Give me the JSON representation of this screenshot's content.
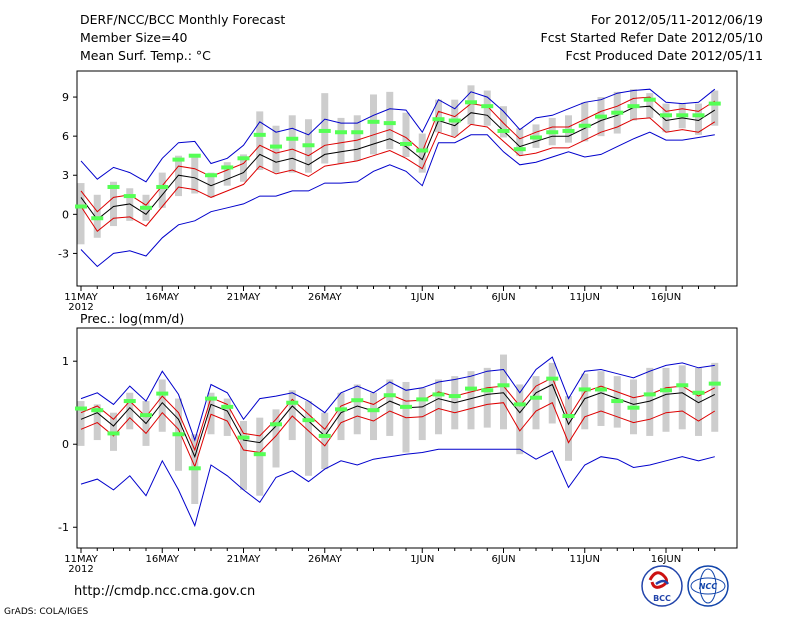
{
  "header": {
    "title": "DERF/NCC/BCC Monthly Forecast",
    "member_size": "Member Size=40",
    "variable": "Mean Surf. Temp.: °C",
    "period": "For 2012/05/11-2012/06/19",
    "start_date": "Fcst Started Refer Date 2012/05/10",
    "produced_date": "Fcst Produced Date 2012/05/11"
  },
  "footer": {
    "url": "http://cmdp.ncc.cma.gov.cn",
    "credit": "GrADS: COLA/IGES",
    "logo_left": "BCC",
    "logo_right": "NCC"
  },
  "colors": {
    "bar": "#cdcdcd",
    "obs": "#55ff55",
    "mean": "#000000",
    "spread": "#dd0000",
    "envelope": "#0000cc"
  },
  "chart_data": [
    {
      "type": "line",
      "name": "temperature",
      "ylabel": "Mean Surf. Temp.: °C",
      "ylim": [
        -5.5,
        11
      ],
      "yticks": [
        -3,
        0,
        3,
        6,
        9
      ],
      "x_tick_labels": [
        "11MAY",
        "16MAY",
        "21MAY",
        "26MAY",
        "1JUN",
        "6JUN",
        "11JUN",
        "16JUN"
      ],
      "x_tick_days": [
        0,
        5,
        10,
        15,
        21,
        26,
        31,
        36
      ],
      "year_label": "2012",
      "days": 40,
      "mean": [
        1.3,
        -0.4,
        0.6,
        0.8,
        0.0,
        1.5,
        3.0,
        2.8,
        2.2,
        2.7,
        3.2,
        4.6,
        4.0,
        4.3,
        3.8,
        4.6,
        4.8,
        5.0,
        5.4,
        5.8,
        5.2,
        4.2,
        7.2,
        6.8,
        7.8,
        7.6,
        6.4,
        5.2,
        5.6,
        6.0,
        6.0,
        6.6,
        7.2,
        7.6,
        8.2,
        8.3,
        7.2,
        7.4,
        7.2,
        8.0
      ],
      "spread_upper": [
        1.8,
        0.2,
        1.3,
        1.5,
        0.7,
        2.2,
        3.7,
        3.5,
        2.9,
        3.4,
        3.9,
        5.3,
        4.7,
        5.0,
        4.5,
        5.3,
        5.5,
        5.7,
        6.1,
        6.5,
        5.9,
        4.8,
        7.9,
        7.5,
        8.5,
        8.3,
        7.0,
        5.8,
        6.3,
        6.7,
        6.7,
        7.3,
        7.9,
        8.3,
        8.9,
        9.0,
        7.9,
        8.1,
        7.9,
        8.7
      ],
      "spread_lower": [
        0.6,
        -1.3,
        -0.3,
        -0.2,
        -0.9,
        0.6,
        2.1,
        1.9,
        1.3,
        1.8,
        2.3,
        3.7,
        3.1,
        3.4,
        2.9,
        3.7,
        3.9,
        4.1,
        4.5,
        4.9,
        4.3,
        3.5,
        6.3,
        5.9,
        6.9,
        6.7,
        5.6,
        4.5,
        4.7,
        5.1,
        5.1,
        5.7,
        6.3,
        6.7,
        7.3,
        7.4,
        6.3,
        6.5,
        6.3,
        7.1
      ],
      "env_max": [
        4.1,
        2.7,
        3.6,
        3.2,
        2.5,
        4.3,
        5.5,
        5.6,
        3.9,
        4.3,
        5.3,
        7.1,
        6.3,
        6.6,
        6.1,
        7.3,
        7.0,
        7.0,
        7.6,
        8.1,
        8.0,
        6.3,
        8.8,
        8.1,
        9.4,
        9.0,
        7.9,
        6.5,
        7.4,
        7.6,
        8.1,
        8.6,
        8.8,
        9.3,
        9.5,
        9.6,
        8.6,
        8.5,
        8.6,
        9.6
      ],
      "env_min": [
        -2.7,
        -4.0,
        -3.0,
        -2.8,
        -3.2,
        -1.8,
        -0.8,
        -0.5,
        0.2,
        0.5,
        0.8,
        1.4,
        1.4,
        1.8,
        1.8,
        2.4,
        2.4,
        2.5,
        3.3,
        3.8,
        3.3,
        2.2,
        5.5,
        5.5,
        6.1,
        6.1,
        4.8,
        3.8,
        4.0,
        4.4,
        4.8,
        4.4,
        4.6,
        5.2,
        5.8,
        6.3,
        5.7,
        5.7,
        5.9,
        6.1
      ],
      "bar_top": [
        2.4,
        1.5,
        2.5,
        2.0,
        1.5,
        3.2,
        4.5,
        4.6,
        3.2,
        4.0,
        4.6,
        7.9,
        6.8,
        7.6,
        7.3,
        9.3,
        7.4,
        7.6,
        9.2,
        9.4,
        7.8,
        6.2,
        8.8,
        8.8,
        9.9,
        9.5,
        8.3,
        6.6,
        6.9,
        7.4,
        7.6,
        8.6,
        9.0,
        9.4,
        9.6,
        9.3,
        8.5,
        8.5,
        8.5,
        9.5
      ],
      "bar_bottom": [
        -2.3,
        -1.8,
        -0.9,
        -0.5,
        -0.5,
        0.5,
        1.4,
        1.6,
        1.3,
        2.2,
        2.5,
        3.4,
        3.2,
        3.2,
        3.2,
        3.9,
        3.9,
        4.1,
        4.6,
        5.0,
        4.4,
        3.2,
        6.3,
        6.0,
        6.9,
        6.8,
        5.9,
        4.5,
        5.1,
        5.3,
        5.5,
        5.6,
        6.0,
        6.2,
        7.2,
        7.4,
        6.3,
        6.6,
        6.1,
        6.8
      ],
      "obs": [
        0.6,
        -0.3,
        2.1,
        1.4,
        0.5,
        2.1,
        4.2,
        4.5,
        3.0,
        3.6,
        4.3,
        6.1,
        5.2,
        5.8,
        5.3,
        6.4,
        6.3,
        6.3,
        7.1,
        7.0,
        5.4,
        4.9,
        7.3,
        7.2,
        8.6,
        8.3,
        6.4,
        5.0,
        5.9,
        6.3,
        6.4,
        6.8,
        7.5,
        7.8,
        8.3,
        8.8,
        7.6,
        7.6,
        7.6,
        8.5
      ]
    },
    {
      "type": "line",
      "name": "precipitation",
      "ylabel": "Prec.: log(mm/d)",
      "ylim": [
        -1.25,
        1.4
      ],
      "yticks": [
        -1,
        0,
        1
      ],
      "x_tick_labels": [
        "11MAY",
        "16MAY",
        "21MAY",
        "26MAY",
        "1JUN",
        "6JUN",
        "11JUN",
        "16JUN"
      ],
      "x_tick_days": [
        0,
        5,
        10,
        15,
        21,
        26,
        31,
        36
      ],
      "year_label": "2012",
      "days": 40,
      "mean": [
        0.3,
        0.38,
        0.22,
        0.44,
        0.25,
        0.5,
        0.3,
        -0.15,
        0.48,
        0.4,
        0.05,
        0.02,
        0.22,
        0.46,
        0.28,
        0.1,
        0.38,
        0.46,
        0.4,
        0.52,
        0.44,
        0.45,
        0.55,
        0.5,
        0.55,
        0.6,
        0.62,
        0.38,
        0.62,
        0.72,
        0.24,
        0.55,
        0.62,
        0.55,
        0.48,
        0.52,
        0.6,
        0.62,
        0.5,
        0.6
      ],
      "spread_upper": [
        0.38,
        0.46,
        0.3,
        0.52,
        0.33,
        0.58,
        0.38,
        -0.07,
        0.56,
        0.48,
        0.13,
        0.1,
        0.3,
        0.54,
        0.36,
        0.18,
        0.46,
        0.54,
        0.48,
        0.6,
        0.52,
        0.53,
        0.63,
        0.58,
        0.63,
        0.68,
        0.7,
        0.46,
        0.7,
        0.8,
        0.32,
        0.63,
        0.7,
        0.63,
        0.56,
        0.6,
        0.68,
        0.7,
        0.58,
        0.68
      ],
      "spread_lower": [
        0.18,
        0.26,
        0.1,
        0.32,
        0.13,
        0.38,
        0.18,
        -0.27,
        0.36,
        0.28,
        -0.07,
        -0.1,
        0.1,
        0.34,
        0.16,
        -0.02,
        0.26,
        0.34,
        0.28,
        0.4,
        0.32,
        0.33,
        0.43,
        0.38,
        0.43,
        0.48,
        0.5,
        0.16,
        0.4,
        0.5,
        0.02,
        0.33,
        0.4,
        0.33,
        0.26,
        0.3,
        0.38,
        0.4,
        0.28,
        0.4
      ],
      "env_max": [
        0.55,
        0.62,
        0.48,
        0.7,
        0.52,
        0.88,
        0.6,
        0.05,
        0.72,
        0.62,
        0.3,
        0.55,
        0.58,
        0.62,
        0.52,
        0.38,
        0.62,
        0.7,
        0.62,
        0.75,
        0.65,
        0.68,
        0.75,
        0.78,
        0.82,
        0.88,
        0.9,
        0.62,
        0.9,
        1.05,
        0.55,
        0.88,
        0.9,
        0.85,
        0.8,
        0.88,
        0.95,
        0.98,
        0.92,
        0.95
      ],
      "env_min": [
        -0.48,
        -0.42,
        -0.55,
        -0.38,
        -0.62,
        -0.2,
        -0.55,
        -0.98,
        -0.25,
        -0.38,
        -0.55,
        -0.7,
        -0.4,
        -0.32,
        -0.45,
        -0.3,
        -0.2,
        -0.25,
        -0.18,
        -0.15,
        -0.12,
        -0.1,
        -0.06,
        -0.06,
        -0.06,
        -0.06,
        -0.06,
        -0.06,
        -0.18,
        -0.08,
        -0.52,
        -0.25,
        -0.15,
        -0.18,
        -0.28,
        -0.25,
        -0.2,
        -0.15,
        -0.2,
        -0.15
      ],
      "bar_top": [
        0.52,
        0.48,
        0.38,
        0.62,
        0.52,
        0.78,
        0.55,
        0.12,
        0.62,
        0.55,
        0.28,
        0.32,
        0.42,
        0.65,
        0.52,
        0.38,
        0.62,
        0.72,
        0.62,
        0.78,
        0.75,
        0.68,
        0.78,
        0.82,
        0.88,
        0.92,
        1.08,
        0.72,
        0.82,
        0.98,
        0.58,
        0.85,
        0.88,
        0.82,
        0.78,
        0.92,
        0.92,
        0.95,
        0.92,
        0.98
      ],
      "bar_bottom": [
        -0.02,
        0.05,
        -0.08,
        0.18,
        -0.02,
        0.15,
        -0.32,
        -0.72,
        0.12,
        0.1,
        -0.55,
        -0.62,
        -0.28,
        0.05,
        -0.38,
        -0.3,
        0.05,
        0.12,
        0.05,
        0.1,
        -0.1,
        0.05,
        0.12,
        0.18,
        0.18,
        0.2,
        0.18,
        -0.12,
        0.18,
        0.25,
        -0.2,
        0.18,
        0.22,
        0.2,
        0.12,
        0.1,
        0.15,
        0.18,
        0.1,
        0.15
      ],
      "obs": [
        0.43,
        0.41,
        0.13,
        0.52,
        0.35,
        0.61,
        0.12,
        -0.29,
        0.55,
        0.45,
        0.08,
        -0.12,
        0.24,
        0.5,
        0.29,
        0.1,
        0.42,
        0.53,
        0.41,
        0.59,
        0.45,
        0.54,
        0.6,
        0.58,
        0.67,
        0.65,
        0.71,
        0.48,
        0.56,
        0.79,
        0.34,
        0.66,
        0.66,
        0.52,
        0.44,
        0.6,
        0.65,
        0.71,
        0.62,
        0.73
      ]
    }
  ]
}
